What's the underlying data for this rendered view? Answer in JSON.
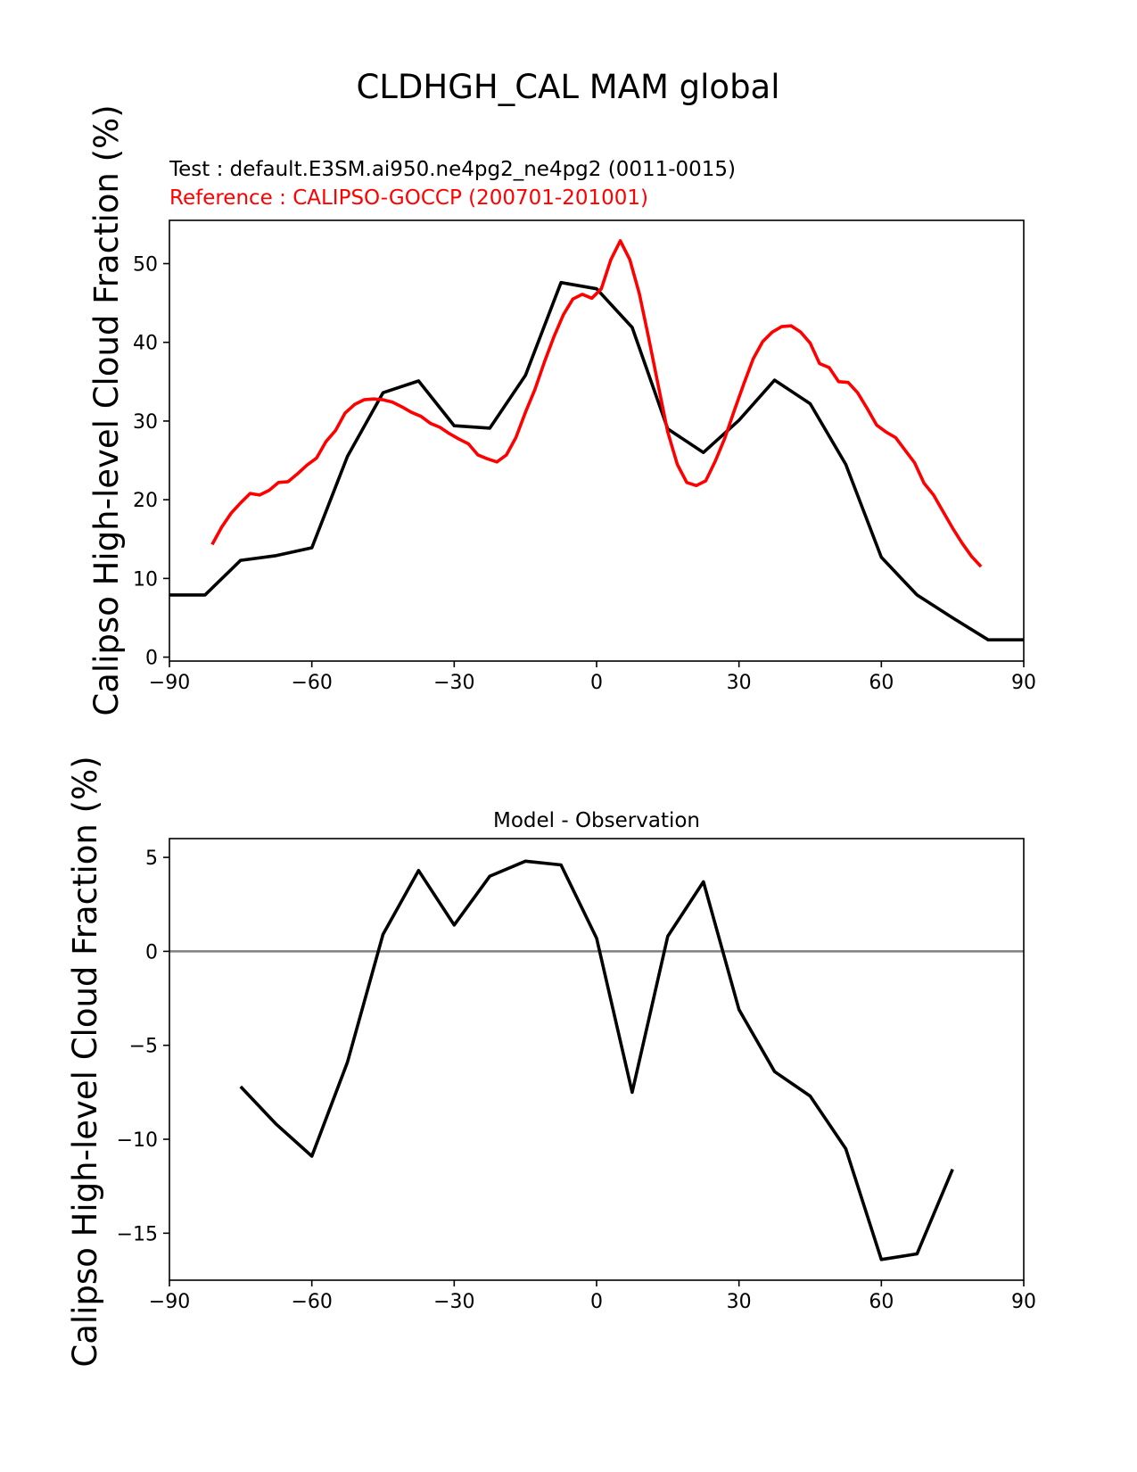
{
  "figure": {
    "title": "CLDHGH_CAL MAM global",
    "test_label": "Test : default.E3SM.ai950.ne4pg2_ne4pg2 (0011-0015)",
    "reference_label": "Reference : CALIPSO-GOCCP (200701-201001)"
  },
  "colors": {
    "test": "#000000",
    "reference": "#ff0000",
    "zero_line": "#808080",
    "axes": "#000000"
  },
  "chart_data": [
    {
      "type": "line",
      "title": "",
      "xlabel": "",
      "ylabel": "Calipso High-level Cloud Fraction (%)",
      "xlim": [
        -90,
        90
      ],
      "ylim": [
        -0.5,
        55.5
      ],
      "xticks": [
        -90,
        -60,
        -30,
        0,
        30,
        60,
        90
      ],
      "xtick_labels": [
        "−90",
        "−60",
        "−30",
        "0",
        "30",
        "60",
        "90"
      ],
      "yticks": [
        0,
        10,
        20,
        30,
        40,
        50
      ],
      "ytick_labels": [
        "0",
        "10",
        "20",
        "30",
        "40",
        "50"
      ],
      "series": [
        {
          "name": "Test",
          "color": "#000000",
          "x": [
            -90,
            -82.5,
            -75,
            -67.5,
            -60,
            -52.5,
            -45,
            -37.5,
            -30,
            -22.5,
            -15,
            -7.5,
            0,
            7.5,
            15,
            22.5,
            30,
            37.5,
            45,
            52.5,
            60,
            67.5,
            75,
            82.5,
            90
          ],
          "y": [
            7.9,
            7.9,
            12.3,
            12.9,
            13.9,
            25.5,
            33.6,
            35.1,
            29.4,
            29.1,
            35.8,
            47.6,
            46.8,
            41.9,
            29.0,
            26.0,
            30.1,
            35.2,
            32.2,
            24.5,
            12.7,
            7.9,
            5.0,
            2.2,
            2.2
          ]
        },
        {
          "name": "Reference",
          "color": "#ff0000",
          "x": [
            -81,
            -79,
            -77,
            -75,
            -73,
            -71,
            -69,
            -67,
            -65,
            -63,
            -61,
            -59,
            -57,
            -55,
            -53,
            -51,
            -49,
            -47,
            -45,
            -43,
            -41,
            -39,
            -37,
            -35,
            -33,
            -31,
            -29,
            -27,
            -25,
            -23,
            -21,
            -19,
            -17,
            -15,
            -13,
            -11,
            -9,
            -7,
            -5,
            -3,
            -1,
            1,
            3,
            5,
            7,
            9,
            11,
            13,
            15,
            17,
            19,
            21,
            23,
            25,
            27,
            29,
            31,
            33,
            35,
            37,
            39,
            41,
            43,
            45,
            47,
            49,
            51,
            53,
            55,
            57,
            59,
            61,
            63,
            65,
            67,
            69,
            71,
            73,
            75,
            77,
            79,
            81
          ],
          "y": [
            14.3,
            16.5,
            18.3,
            19.6,
            20.8,
            20.6,
            21.2,
            22.2,
            22.3,
            23.3,
            24.4,
            25.3,
            27.4,
            28.8,
            31.0,
            32.1,
            32.7,
            32.8,
            32.7,
            32.4,
            31.8,
            31.1,
            30.6,
            29.7,
            29.2,
            28.4,
            27.7,
            27.1,
            25.7,
            25.2,
            24.8,
            25.7,
            27.9,
            31.1,
            34.0,
            37.5,
            40.7,
            43.5,
            45.5,
            46.1,
            45.6,
            46.8,
            50.5,
            52.9,
            50.5,
            46.2,
            40.5,
            34.5,
            28.6,
            24.5,
            22.2,
            21.8,
            22.4,
            24.9,
            27.8,
            31.3,
            34.7,
            37.9,
            40.1,
            41.3,
            42.0,
            42.1,
            41.3,
            39.9,
            37.3,
            36.8,
            35.0,
            34.9,
            33.6,
            31.6,
            29.5,
            28.6,
            27.9,
            26.3,
            24.7,
            22.1,
            20.6,
            18.5,
            16.4,
            14.5,
            12.8,
            11.5
          ]
        }
      ]
    },
    {
      "type": "line",
      "title": "Model - Observation",
      "xlabel": "",
      "ylabel": "Calipso High-level Cloud Fraction (%)",
      "xlim": [
        -90,
        90
      ],
      "ylim": [
        -17.5,
        6
      ],
      "xticks": [
        -90,
        -60,
        -30,
        0,
        30,
        60,
        90
      ],
      "xtick_labels": [
        "−90",
        "−60",
        "−30",
        "0",
        "30",
        "60",
        "90"
      ],
      "yticks": [
        -15,
        -10,
        -5,
        0,
        5
      ],
      "ytick_labels": [
        "−15",
        "−10",
        "−5",
        "0",
        "5"
      ],
      "zero_line": 0,
      "series": [
        {
          "name": "Model - Observation",
          "color": "#000000",
          "x": [
            -75,
            -67.5,
            -60,
            -52.5,
            -45,
            -37.5,
            -30,
            -22.5,
            -15,
            -7.5,
            0,
            7.5,
            15,
            22.5,
            30,
            37.5,
            45,
            52.5,
            60,
            67.5,
            75
          ],
          "y": [
            -7.2,
            -9.2,
            -10.9,
            -5.9,
            0.9,
            4.3,
            1.4,
            4.0,
            4.8,
            4.6,
            0.7,
            -7.5,
            0.8,
            3.7,
            -3.1,
            -6.4,
            -7.7,
            -10.5,
            -16.4,
            -16.1,
            -11.6
          ]
        }
      ]
    }
  ]
}
